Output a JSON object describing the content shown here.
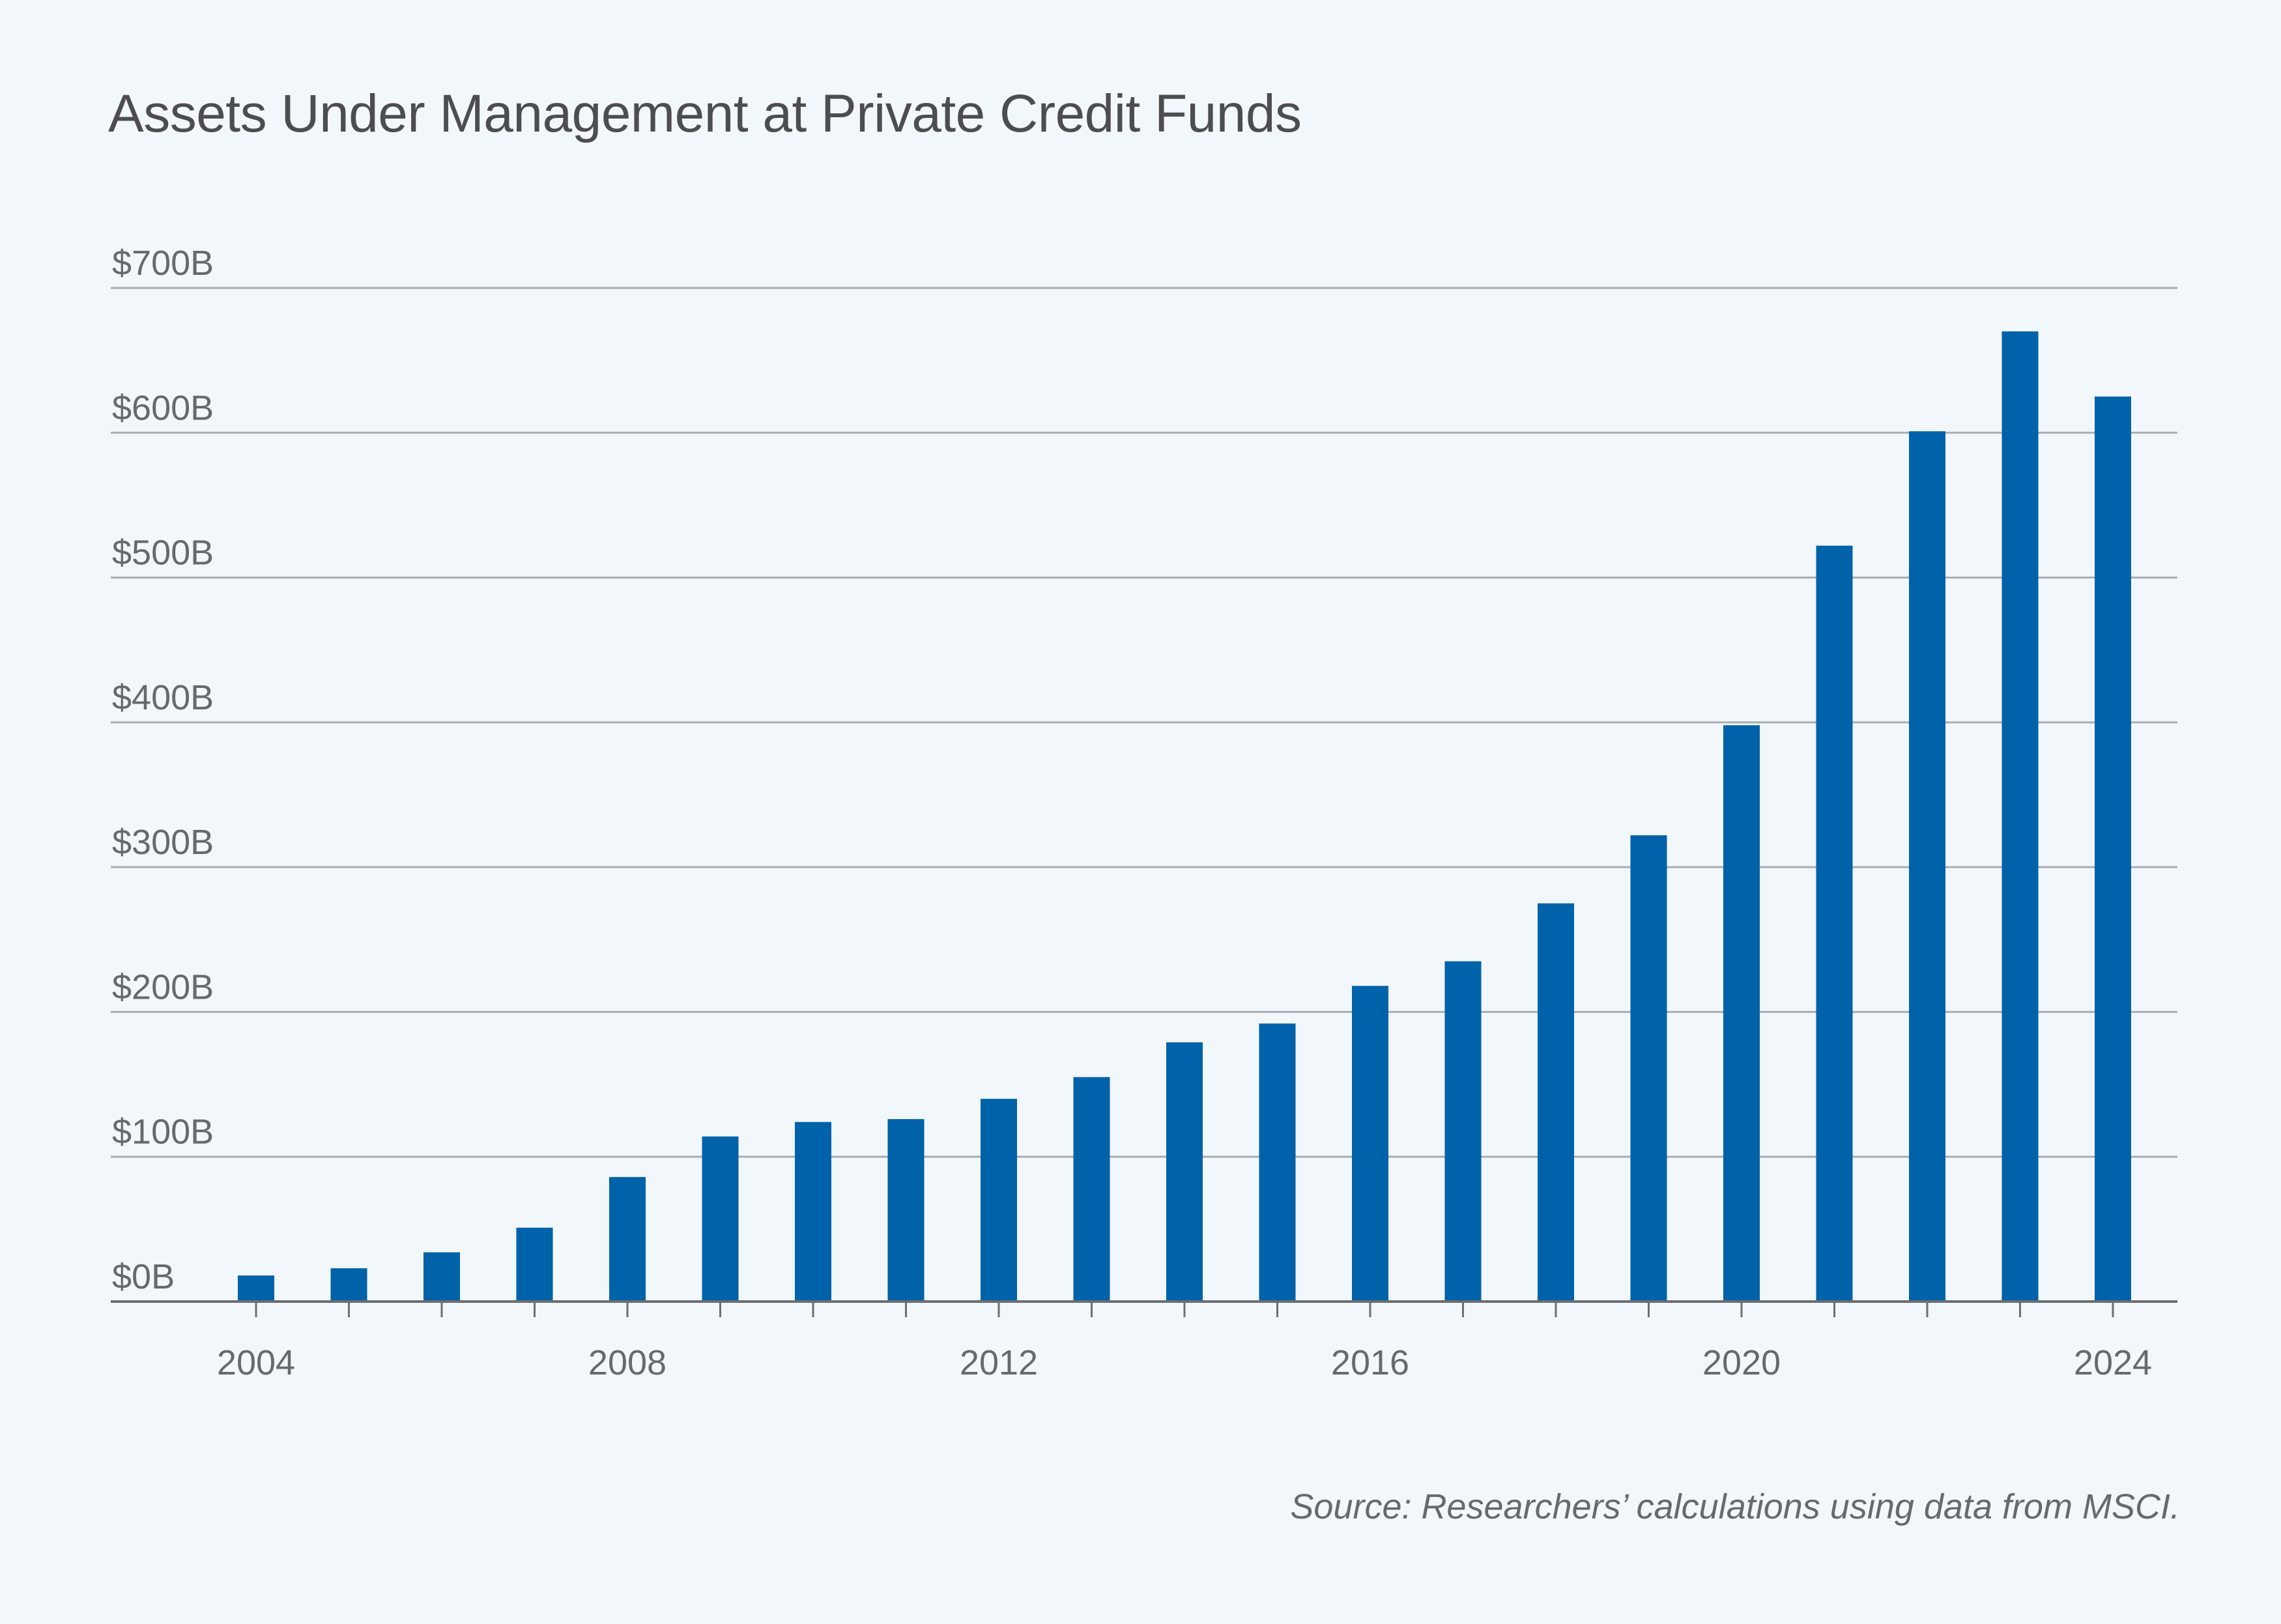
{
  "chart_data": {
    "type": "bar",
    "title": "Assets Under Management at Private Credit Funds",
    "source": "Source: Researchers’ calculations using data from MSCI.",
    "xlabel": "",
    "ylabel": "",
    "categories": [
      2004,
      2005,
      2006,
      2007,
      2008,
      2009,
      2010,
      2011,
      2012,
      2013,
      2014,
      2015,
      2016,
      2017,
      2018,
      2019,
      2020,
      2021,
      2022,
      2023,
      2024
    ],
    "values": [
      18,
      23,
      34,
      51,
      86,
      114,
      124,
      126,
      140,
      155,
      179,
      192,
      218,
      235,
      275,
      322,
      398,
      522,
      601,
      670,
      625
    ],
    "ylim": [
      0,
      700
    ],
    "yticks": [
      0,
      100,
      200,
      300,
      400,
      500,
      600,
      700
    ],
    "ytick_labels": [
      "$0B",
      "$100B",
      "$200B",
      "$300B",
      "$400B",
      "$500B",
      "$600B",
      "$700B"
    ],
    "xtick_labels": [
      "2004",
      "2008",
      "2012",
      "2016",
      "2020",
      "2024"
    ],
    "xtick_label_years": [
      2004,
      2008,
      2012,
      2016,
      2020,
      2024
    ],
    "bar_color": "#0062a8",
    "grid": true,
    "legend": "none"
  }
}
